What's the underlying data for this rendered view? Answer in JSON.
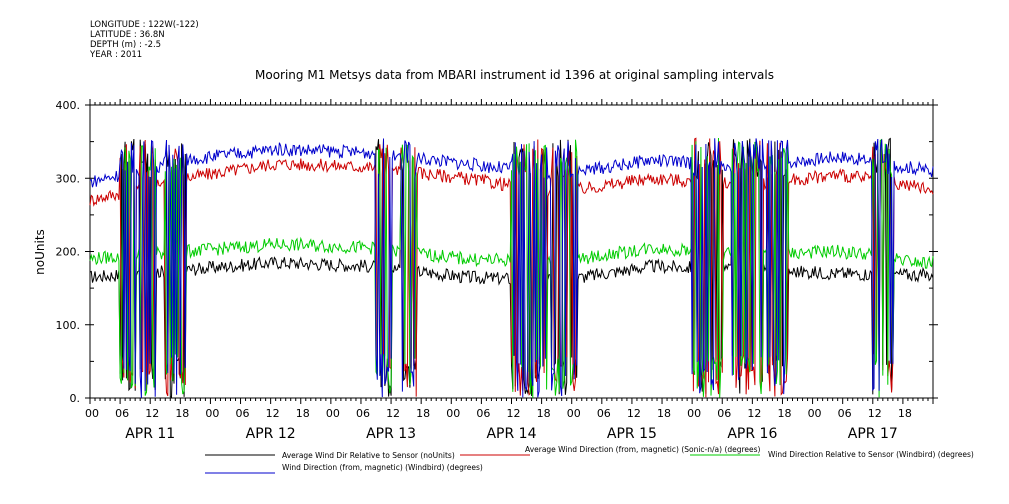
{
  "header": {
    "longitude": "LONGITUDE : 122W(-122)",
    "latitude": "LATITUDE : 36.8N",
    "depth": "DEPTH (m) : -2.5",
    "year": "YEAR : 2011"
  },
  "chart_data": {
    "type": "line",
    "title": "Mooring M1 Metsys data from MBARI instrument id 1396 at original sampling intervals",
    "ylabel": "noUnits",
    "xlabel": "",
    "ylim": [
      0,
      400
    ],
    "yticks": [
      0,
      100,
      200,
      300,
      400
    ],
    "ytick_labels": [
      "0.",
      "100.",
      "200.",
      "300.",
      "400."
    ],
    "xlim_hours": [
      0,
      168
    ],
    "hour_tick_labels": [
      "00",
      "06",
      "12",
      "18"
    ],
    "day_labels": [
      "APR 11",
      "APR 12",
      "APR 13",
      "APR 14",
      "APR 15",
      "APR 16",
      "APR 17"
    ],
    "grid": false,
    "legend_placement": "bottom",
    "series": [
      {
        "name": "Average Wind Dir Relative to Sensor (noUnits)",
        "color": "#000000",
        "baseline": [
          165,
          175,
          185,
          180,
          165,
          160,
          180,
          175,
          170,
          168
        ]
      },
      {
        "name": "Average Wind Direction (from, magnetic) (Sonic-n/a) (degrees)",
        "color": "#cc0000",
        "baseline": [
          270,
          300,
          320,
          315,
          300,
          280,
          300,
          290,
          305,
          285
        ]
      },
      {
        "name": "Wind Direction Relative to Sensor (Windbird) (degrees)",
        "color": "#00cc00",
        "baseline": [
          190,
          200,
          210,
          205,
          190,
          185,
          205,
          195,
          200,
          185
        ]
      },
      {
        "name": "Wind Direction (from, magnetic) (Windbird) (degrees)",
        "color": "#0000cc",
        "baseline": [
          295,
          325,
          340,
          335,
          320,
          305,
          325,
          315,
          330,
          310
        ]
      }
    ]
  }
}
